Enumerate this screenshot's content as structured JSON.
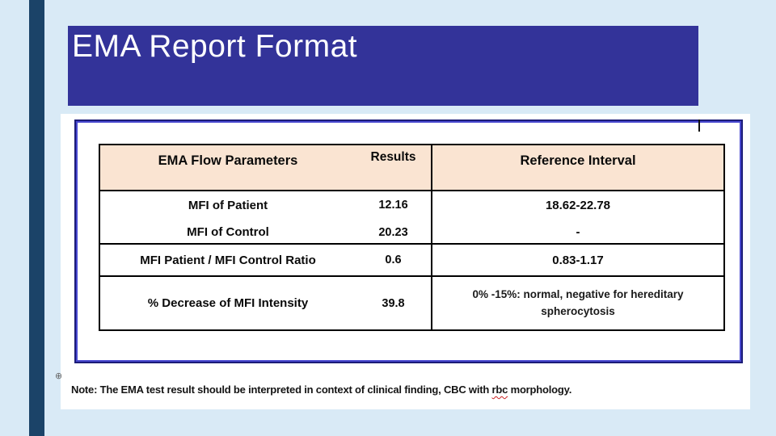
{
  "slide": {
    "title": "EMA Report Format"
  },
  "table": {
    "headers": [
      "EMA Flow Parameters",
      "Results",
      "Reference Interval"
    ],
    "group_mfi": {
      "rows": [
        {
          "parameter": "MFI of Patient",
          "result": "12.16",
          "reference": "18.62-22.78"
        },
        {
          "parameter": "MFI of Control",
          "result": "20.23",
          "reference": "-"
        }
      ]
    },
    "row_ratio": {
      "parameter": "MFI Patient / MFI Control Ratio",
      "result": "0.6",
      "reference": "0.83-1.17"
    },
    "row_decrease": {
      "parameter": "% Decrease of MFI Intensity",
      "result": "39.8",
      "reference": "0% -15%: normal, negative for hereditary spherocytosis"
    }
  },
  "note": {
    "prefix": "Note: The EMA test result should be interpreted in context of clinical finding, CBC with ",
    "misspelled": "rbc",
    "suffix": " morphology."
  },
  "icons": {
    "move_anchor": "⊕"
  },
  "colors": {
    "background": "#D9EAF6",
    "accent_bar": "#1B4368",
    "banner": "#333399",
    "table_header_fill": "#FAE4D2",
    "frame_outer": "#1C1C78",
    "frame_inner": "#4848D0",
    "spellcheck_underline": "#CC2222"
  }
}
